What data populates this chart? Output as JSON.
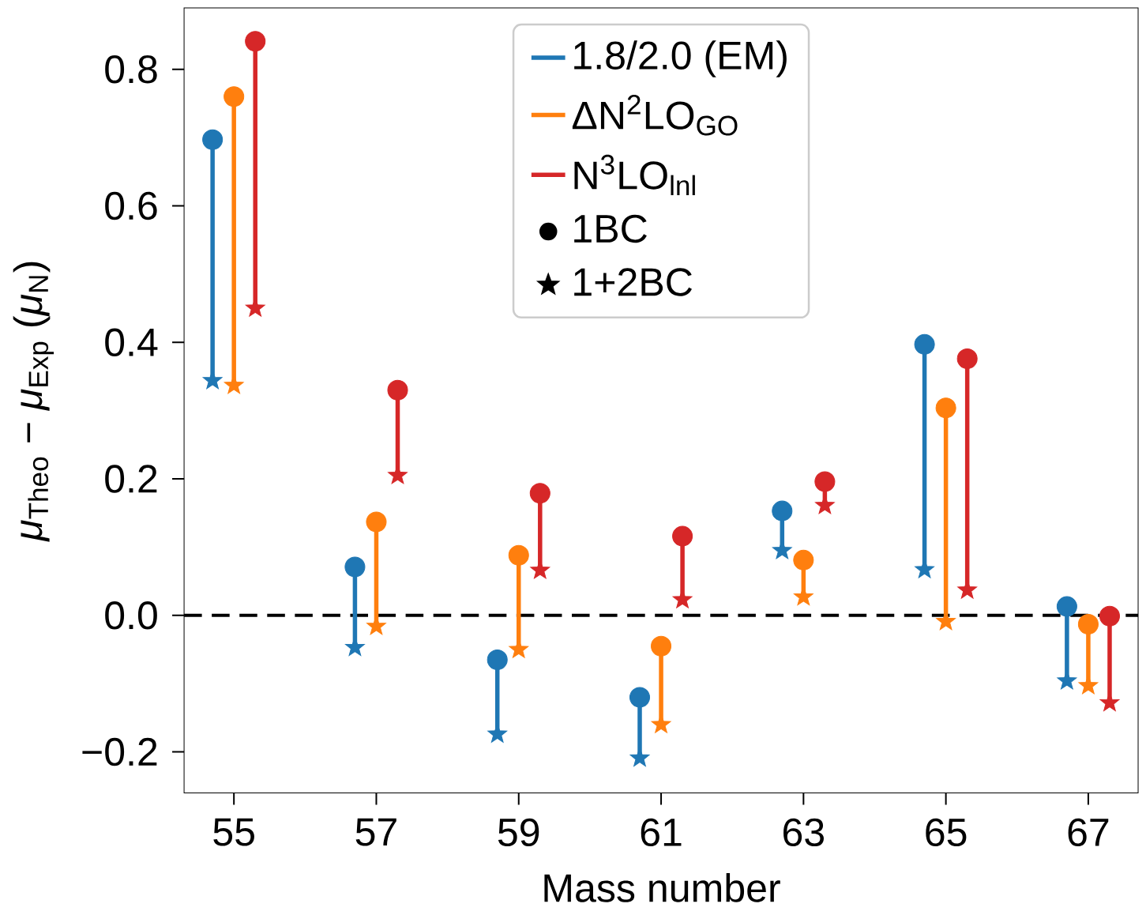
{
  "chart_data": {
    "type": "scatter",
    "xlabel": "Mass number",
    "ylabel": "*μ*$_{Theo}$ − *μ*$_{Exp}$ (*μ*$_{N}$)",
    "xlim": [
      54.3,
      67.7
    ],
    "xticks": [
      55,
      57,
      59,
      61,
      63,
      65,
      67
    ],
    "ylim": [
      -0.26,
      0.89
    ],
    "yticks": [
      {
        "value": -0.2,
        "label": "−0.2"
      },
      {
        "value": 0,
        "label": "0.0"
      },
      {
        "value": 0.2,
        "label": "0.2"
      },
      {
        "value": 0.4,
        "label": "0.4"
      },
      {
        "value": 0.6,
        "label": "0.6"
      },
      {
        "value": 0.8,
        "label": "0.8"
      }
    ],
    "legend": "top",
    "grid": false,
    "series": [
      {
        "type": "line",
        "color": "#1f77b4",
        "marker": "none",
        "x": [
          54.7,
          54.7,
          null,
          56.7,
          56.7,
          null,
          58.7,
          58.7,
          null,
          60.7,
          60.7,
          null,
          62.7,
          62.7,
          null,
          64.7,
          64.7,
          null,
          66.7,
          66.7
        ],
        "values": [
          0.697,
          0.344,
          null,
          0.071,
          -0.047,
          null,
          -0.065,
          -0.174,
          null,
          -0.12,
          -0.209,
          null,
          0.153,
          0.095,
          null,
          0.397,
          0.067,
          null,
          0.013,
          -0.096
        ]
      },
      {
        "type": "line",
        "color": "#ff7f0e",
        "marker": "none",
        "x": [
          55,
          55,
          null,
          57,
          57,
          null,
          59,
          59,
          null,
          61,
          61,
          null,
          63,
          63,
          null,
          65,
          65,
          null,
          67,
          67
        ],
        "values": [
          0.76,
          0.337,
          null,
          0.137,
          -0.016,
          null,
          0.088,
          -0.05,
          null,
          -0.045,
          -0.16,
          null,
          0.081,
          0.027,
          null,
          0.304,
          -0.009,
          null,
          -0.013,
          -0.103
        ]
      },
      {
        "type": "line",
        "color": "#d62728",
        "marker": "none",
        "x": [
          55.3,
          55.3,
          null,
          57.3,
          57.3,
          null,
          59.3,
          59.3,
          null,
          61.3,
          61.3,
          null,
          63.3,
          63.3,
          null,
          65.3,
          65.3,
          null,
          67.3,
          67.3
        ],
        "values": [
          0.841,
          0.45,
          null,
          0.33,
          0.205,
          null,
          0.179,
          0.066,
          null,
          0.116,
          0.023,
          null,
          0.196,
          0.161,
          null,
          0.376,
          0.037,
          null,
          -0.001,
          -0.128
        ]
      },
      {
        "name": "1.8/2.0 (EM)",
        "color": "#1f77b4",
        "marker": "circle",
        "x": [
          54.7,
          56.7,
          58.7,
          60.7,
          62.7,
          64.7,
          66.7
        ],
        "values": [
          0.697,
          0.071,
          -0.065,
          -0.12,
          0.153,
          0.397,
          0.013
        ]
      },
      {
        "name": "ΔN$^{2}$LO$_{GO}$",
        "color": "#ff7f0e",
        "marker": "circle",
        "x": [
          55,
          57,
          59,
          61,
          63,
          65,
          67
        ],
        "values": [
          0.76,
          0.137,
          0.088,
          -0.045,
          0.081,
          0.304,
          -0.013
        ]
      },
      {
        "name": "N$^{3}$LO$_{lnl}$",
        "color": "#d62728",
        "marker": "circle",
        "x": [
          55.3,
          57.3,
          59.3,
          61.3,
          63.3,
          65.3,
          67.3
        ],
        "values": [
          0.841,
          0.33,
          0.179,
          0.116,
          0.196,
          0.376,
          -0.001
        ]
      },
      {
        "color": "#1f77b4",
        "marker": "star",
        "x": [
          54.7,
          56.7,
          58.7,
          60.7,
          62.7,
          64.7,
          66.7
        ],
        "values": [
          0.344,
          -0.047,
          -0.174,
          -0.209,
          0.095,
          0.067,
          -0.096
        ]
      },
      {
        "color": "#ff7f0e",
        "marker": "star",
        "x": [
          55,
          57,
          59,
          61,
          63,
          65,
          67
        ],
        "values": [
          0.337,
          -0.016,
          -0.05,
          -0.16,
          0.027,
          -0.009,
          -0.103
        ]
      },
      {
        "color": "#d62728",
        "marker": "star",
        "x": [
          55.3,
          57.3,
          59.3,
          61.3,
          63.3,
          65.3,
          67.3
        ],
        "values": [
          0.45,
          0.205,
          0.066,
          0.023,
          0.161,
          0.037,
          -0.128
        ]
      },
      {
        "name": "1BC",
        "color": "#000000",
        "marker": "circle",
        "values": [
          null
        ]
      },
      {
        "name": "1+2BC",
        "color": "#000000",
        "marker": "star",
        "values": [
          null
        ]
      }
    ],
    "ref_lines": [
      {
        "axis": "y",
        "value": 0,
        "color": "#000000",
        "line_style": "dashed"
      }
    ]
  }
}
